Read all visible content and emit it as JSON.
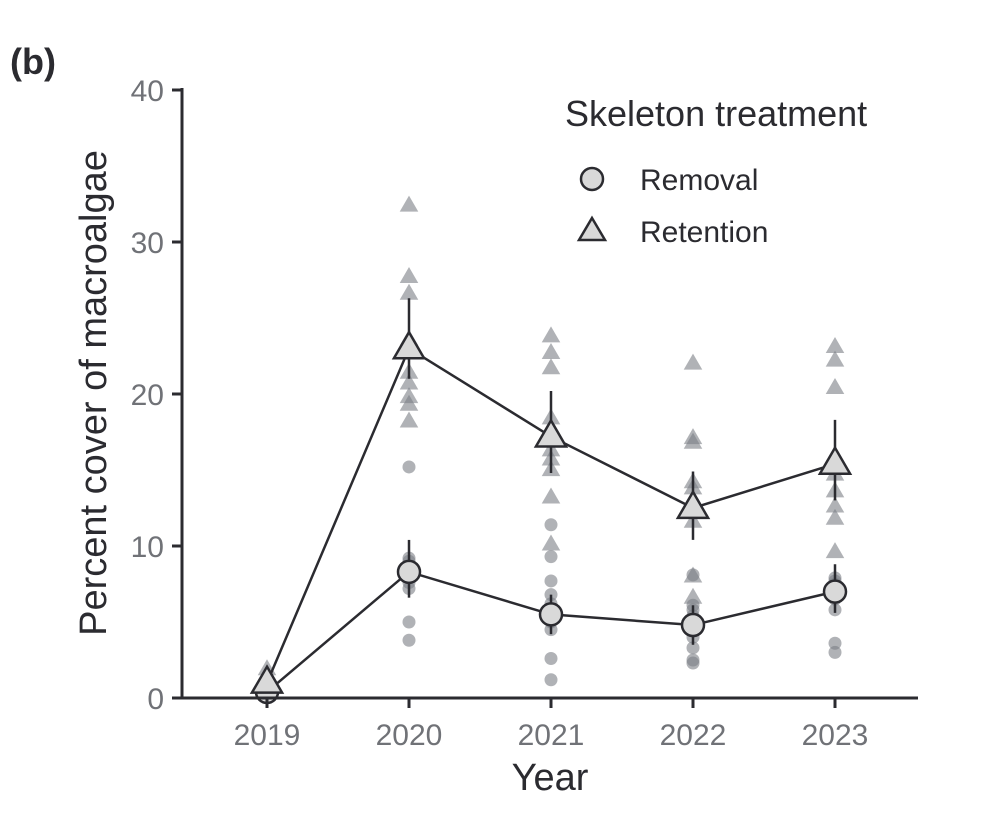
{
  "chart_data": {
    "type": "line",
    "panel_label": "(b)",
    "xlabel": "Year",
    "ylabel": "Percent cover of macroalgae",
    "ylim": [
      0,
      40
    ],
    "yticks": [
      "0",
      "10",
      "20",
      "30",
      "40"
    ],
    "categories": [
      "2019",
      "2020",
      "2021",
      "2022",
      "2023"
    ],
    "grid": false,
    "legend": {
      "title": "Skeleton treatment",
      "placement": "top-right"
    },
    "series": [
      {
        "name": "Removal",
        "marker": "circle",
        "mean": [
          0.4,
          8.3,
          5.5,
          4.8,
          7.0
        ],
        "error_low": [
          0.2,
          6.6,
          4.2,
          3.5,
          5.6
        ],
        "error_high": [
          0.6,
          10.4,
          6.8,
          6.1,
          8.8
        ],
        "raw": [
          [
            0.2,
            0.4,
            0.6
          ],
          [
            3.8,
            5.0,
            7.2,
            7.6,
            8.2,
            8.6,
            9.0,
            9.2,
            15.2
          ],
          [
            1.2,
            2.6,
            4.5,
            5.0,
            5.5,
            6.2,
            6.8,
            7.7,
            9.3,
            11.4
          ],
          [
            2.3,
            2.5,
            3.3,
            4.0,
            4.4,
            5.0,
            5.4,
            5.8,
            6.1,
            8.1
          ],
          [
            3.0,
            3.6,
            5.8,
            6.5,
            6.8,
            7.2,
            7.5,
            7.7,
            7.9
          ]
        ]
      },
      {
        "name": "Retention",
        "marker": "triangle",
        "mean": [
          1.0,
          23.0,
          17.2,
          12.5,
          15.4
        ],
        "error_low": [
          0.6,
          21.0,
          14.8,
          10.4,
          13.0
        ],
        "error_high": [
          1.4,
          26.3,
          20.2,
          14.9,
          18.3
        ],
        "raw": [
          [
            0.8,
            1.3,
            1.9
          ],
          [
            18.2,
            19.3,
            19.8,
            20.7,
            21.4,
            23.6,
            26.6,
            27.7,
            32.4
          ],
          [
            10.1,
            13.2,
            15.0,
            15.7,
            16.3,
            17.0,
            18.4,
            21.7,
            22.7,
            23.8
          ],
          [
            6.6,
            8.0,
            11.6,
            12.2,
            13.8,
            14.2,
            16.8,
            17.1,
            22.0
          ],
          [
            9.6,
            11.8,
            12.6,
            13.6,
            14.7,
            20.4,
            22.2,
            23.1
          ]
        ]
      }
    ],
    "colors": {
      "axis": "#2b2b30",
      "line": "#2b2b30",
      "marker_fill": "#d9d9d9",
      "raw_point": "#7c7f86"
    }
  }
}
